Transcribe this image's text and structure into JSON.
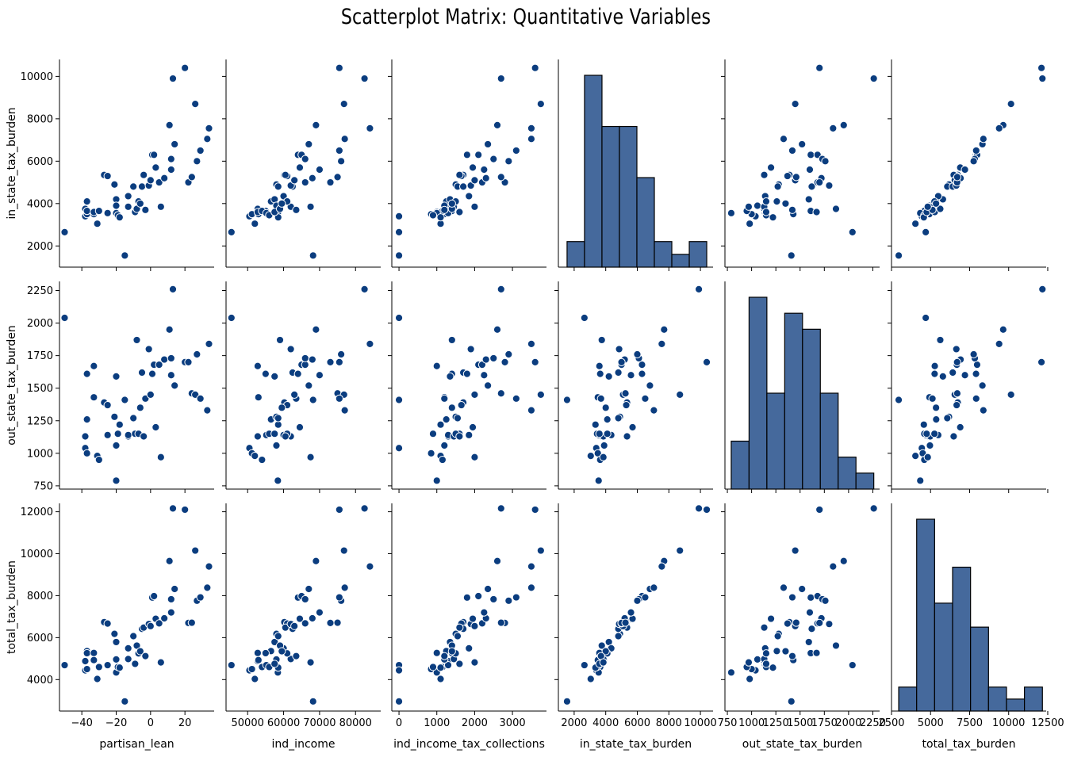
{
  "title": "Scatterplot Matrix: Quantitative Variables",
  "point_color": "#0b3d7f",
  "bar_color": "#45699c",
  "chart_data": {
    "type": "scatter",
    "title": "Scatterplot Matrix: Quantitative Variables",
    "x_vars": [
      "partisan_lean",
      "ind_income",
      "ind_income_tax_collections",
      "in_state_tax_burden",
      "out_state_tax_burden",
      "total_tax_burden"
    ],
    "y_vars": [
      "in_state_tax_burden",
      "out_state_tax_burden",
      "total_tax_burden"
    ],
    "diagonal": "histogram",
    "axes": {
      "partisan_lean": {
        "range": [
          -53,
          37
        ],
        "ticks": [
          -40,
          -20,
          0,
          20
        ],
        "tick_labels": [
          "−40",
          "−20",
          "0",
          "20"
        ]
      },
      "ind_income": {
        "range": [
          44000,
          87000
        ],
        "ticks": [
          50000,
          60000,
          70000,
          80000
        ],
        "tick_labels": [
          "50000",
          "60000",
          "70000",
          "80000"
        ]
      },
      "ind_income_tax_collections": {
        "range": [
          -190,
          3900
        ],
        "ticks": [
          0,
          1000,
          2000,
          3000
        ],
        "tick_labels": [
          "0",
          "1000",
          "2000",
          "3000"
        ]
      },
      "in_state_tax_burden": {
        "range": [
          1000,
          10800
        ],
        "ticks": [
          2000,
          4000,
          6000,
          8000,
          10000
        ],
        "tick_labels": [
          "2000",
          "4000",
          "6000",
          "8000",
          "10000"
        ]
      },
      "out_state_tax_burden": {
        "range": [
          725,
          2320
        ],
        "ticks": [
          750,
          1000,
          1250,
          1500,
          1750,
          2000,
          2250
        ],
        "tick_labels": [
          "750",
          "1000",
          "1250",
          "1500",
          "1750",
          "2000",
          "2250"
        ]
      },
      "total_tax_burden": {
        "range": [
          2500,
          12400
        ],
        "ticks": [
          2500,
          5000,
          7500,
          10000,
          12500
        ],
        "tick_labels": [
          "2500",
          "5000",
          "7500",
          "10000",
          "12500"
        ]
      }
    },
    "y_axis_ticks": {
      "in_state_tax_burden": {
        "ticks": [
          2000,
          4000,
          6000,
          8000,
          10000
        ],
        "tick_labels": [
          "2000",
          "4000",
          "6000",
          "8000",
          "10000"
        ]
      },
      "out_state_tax_burden": {
        "ticks": [
          750,
          1000,
          1250,
          1500,
          1750,
          2000,
          2250
        ],
        "tick_labels": [
          "750",
          "1000",
          "1250",
          "1500",
          "1750",
          "2000",
          "2250"
        ]
      },
      "total_tax_burden": {
        "ticks": [
          4000,
          6000,
          8000,
          10000,
          12000
        ],
        "tick_labels": [
          "4000",
          "6000",
          "8000",
          "10000",
          "12000"
        ]
      }
    },
    "records": [
      {
        "partisan_lean": -50,
        "ind_income": 45500,
        "ind_income_tax_collections": 0,
        "in_state_tax_burden": 2650,
        "out_state_tax_burden": 2040,
        "total_tax_burden": 4690
      },
      {
        "partisan_lean": -38,
        "ind_income": 50500,
        "ind_income_tax_collections": 0,
        "in_state_tax_burden": 3400,
        "out_state_tax_burden": 1040,
        "total_tax_burden": 4440
      },
      {
        "partisan_lean": -37,
        "ind_income": 51200,
        "ind_income_tax_collections": 850,
        "in_state_tax_burden": 3500,
        "out_state_tax_burden": 1000,
        "total_tax_burden": 4500
      },
      {
        "partisan_lean": -38,
        "ind_income": 52800,
        "ind_income_tax_collections": 1300,
        "in_state_tax_burden": 3750,
        "out_state_tax_burden": 1130,
        "total_tax_burden": 4880
      },
      {
        "partisan_lean": -37,
        "ind_income": 56500,
        "ind_income_tax_collections": 1250,
        "in_state_tax_burden": 4100,
        "out_state_tax_burden": 1260,
        "total_tax_burden": 5360
      },
      {
        "partisan_lean": -37,
        "ind_income": 55000,
        "ind_income_tax_collections": 1400,
        "in_state_tax_burden": 3650,
        "out_state_tax_burden": 1610,
        "total_tax_burden": 5260
      },
      {
        "partisan_lean": -33,
        "ind_income": 53000,
        "ind_income_tax_collections": 1200,
        "in_state_tax_burden": 3500,
        "out_state_tax_burden": 1430,
        "total_tax_burden": 4930
      },
      {
        "partisan_lean": -33,
        "ind_income": 52800,
        "ind_income_tax_collections": 1000,
        "in_state_tax_burden": 3600,
        "out_state_tax_burden": 1670,
        "total_tax_burden": 5270
      },
      {
        "partisan_lean": -31,
        "ind_income": 52000,
        "ind_income_tax_collections": 1100,
        "in_state_tax_burden": 3050,
        "out_state_tax_burden": 980,
        "total_tax_burden": 4030
      },
      {
        "partisan_lean": -30,
        "ind_income": 54000,
        "ind_income_tax_collections": 1150,
        "in_state_tax_burden": 3650,
        "out_state_tax_burden": 950,
        "total_tax_burden": 4600
      },
      {
        "partisan_lean": -27,
        "ind_income": 60200,
        "ind_income_tax_collections": 1700,
        "in_state_tax_burden": 5350,
        "out_state_tax_burden": 1390,
        "total_tax_burden": 6740
      },
      {
        "partisan_lean": -25,
        "ind_income": 61000,
        "ind_income_tax_collections": 1650,
        "in_state_tax_burden": 5300,
        "out_state_tax_burden": 1370,
        "total_tax_burden": 6670
      },
      {
        "partisan_lean": -25,
        "ind_income": 55200,
        "ind_income_tax_collections": 1300,
        "in_state_tax_burden": 3550,
        "out_state_tax_burden": 1140,
        "total_tax_burden": 4690
      },
      {
        "partisan_lean": -21,
        "ind_income": 58000,
        "ind_income_tax_collections": 1500,
        "in_state_tax_burden": 4900,
        "out_state_tax_burden": 1280,
        "total_tax_burden": 6180
      },
      {
        "partisan_lean": -20,
        "ind_income": 58400,
        "ind_income_tax_collections": 1000,
        "in_state_tax_burden": 3550,
        "out_state_tax_burden": 790,
        "total_tax_burden": 4340
      },
      {
        "partisan_lean": -20,
        "ind_income": 57500,
        "ind_income_tax_collections": 1350,
        "in_state_tax_burden": 4200,
        "out_state_tax_burden": 1590,
        "total_tax_burden": 5790
      },
      {
        "partisan_lean": -20,
        "ind_income": 58000,
        "ind_income_tax_collections": 1200,
        "in_state_tax_burden": 3900,
        "out_state_tax_burden": 1060,
        "total_tax_burden": 4960
      },
      {
        "partisan_lean": -19,
        "ind_income": 56000,
        "ind_income_tax_collections": 900,
        "in_state_tax_burden": 3450,
        "out_state_tax_burden": 1150,
        "total_tax_burden": 4600
      },
      {
        "partisan_lean": -18,
        "ind_income": 58500,
        "ind_income_tax_collections": 1100,
        "in_state_tax_burden": 3350,
        "out_state_tax_burden": 1220,
        "total_tax_burden": 4570
      },
      {
        "partisan_lean": -15,
        "ind_income": 68200,
        "ind_income_tax_collections": 0,
        "in_state_tax_burden": 1550,
        "out_state_tax_burden": 1410,
        "total_tax_burden": 2960
      },
      {
        "partisan_lean": -13,
        "ind_income": 62000,
        "ind_income_tax_collections": 1450,
        "in_state_tax_burden": 3850,
        "out_state_tax_burden": 1130,
        "total_tax_burden": 4980
      },
      {
        "partisan_lean": -13,
        "ind_income": 60000,
        "ind_income_tax_collections": 1850,
        "in_state_tax_burden": 4350,
        "out_state_tax_burden": 1140,
        "total_tax_burden": 5490
      },
      {
        "partisan_lean": -10,
        "ind_income": 58500,
        "ind_income_tax_collections": 1550,
        "in_state_tax_burden": 4800,
        "out_state_tax_burden": 1270,
        "total_tax_burden": 6070
      },
      {
        "partisan_lean": -9,
        "ind_income": 57500,
        "ind_income_tax_collections": 1600,
        "in_state_tax_burden": 3600,
        "out_state_tax_burden": 1150,
        "total_tax_burden": 4750
      },
      {
        "partisan_lean": -8,
        "ind_income": 59000,
        "ind_income_tax_collections": 1400,
        "in_state_tax_burden": 3750,
        "out_state_tax_burden": 1870,
        "total_tax_burden": 5620
      },
      {
        "partisan_lean": -7,
        "ind_income": 61000,
        "ind_income_tax_collections": 1500,
        "in_state_tax_burden": 4100,
        "out_state_tax_burden": 1150,
        "total_tax_burden": 5250
      },
      {
        "partisan_lean": -6,
        "ind_income": 59500,
        "ind_income_tax_collections": 1400,
        "in_state_tax_burden": 4000,
        "out_state_tax_burden": 1350,
        "total_tax_burden": 5350
      },
      {
        "partisan_lean": -5,
        "ind_income": 62500,
        "ind_income_tax_collections": 1700,
        "in_state_tax_burden": 4800,
        "out_state_tax_burden": 1620,
        "total_tax_burden": 6420
      },
      {
        "partisan_lean": -4,
        "ind_income": 60500,
        "ind_income_tax_collections": 1600,
        "in_state_tax_burden": 5350,
        "out_state_tax_burden": 1130,
        "total_tax_burden": 6480
      },
      {
        "partisan_lean": -3,
        "ind_income": 63500,
        "ind_income_tax_collections": 1200,
        "in_state_tax_burden": 3700,
        "out_state_tax_burden": 1420,
        "total_tax_burden": 5120
      },
      {
        "partisan_lean": -1,
        "ind_income": 62000,
        "ind_income_tax_collections": 1900,
        "in_state_tax_burden": 4850,
        "out_state_tax_burden": 1800,
        "total_tax_burden": 6650
      },
      {
        "partisan_lean": 0,
        "ind_income": 63000,
        "ind_income_tax_collections": 2000,
        "in_state_tax_burden": 5100,
        "out_state_tax_burden": 1450,
        "total_tax_burden": 6550
      },
      {
        "partisan_lean": 1,
        "ind_income": 64000,
        "ind_income_tax_collections": 1800,
        "in_state_tax_burden": 6300,
        "out_state_tax_burden": 1610,
        "total_tax_burden": 7910
      },
      {
        "partisan_lean": 2,
        "ind_income": 65000,
        "ind_income_tax_collections": 2100,
        "in_state_tax_burden": 6300,
        "out_state_tax_burden": 1680,
        "total_tax_burden": 7980
      },
      {
        "partisan_lean": 3,
        "ind_income": 64500,
        "ind_income_tax_collections": 1950,
        "in_state_tax_burden": 5700,
        "out_state_tax_burden": 1200,
        "total_tax_burden": 6900
      },
      {
        "partisan_lean": 5,
        "ind_income": 66000,
        "ind_income_tax_collections": 2200,
        "in_state_tax_burden": 5000,
        "out_state_tax_burden": 1680,
        "total_tax_burden": 6680
      },
      {
        "partisan_lean": 6,
        "ind_income": 67500,
        "ind_income_tax_collections": 2000,
        "in_state_tax_burden": 3850,
        "out_state_tax_burden": 970,
        "total_tax_burden": 4820
      },
      {
        "partisan_lean": 8,
        "ind_income": 68000,
        "ind_income_tax_collections": 2300,
        "in_state_tax_burden": 5200,
        "out_state_tax_burden": 1720,
        "total_tax_burden": 6920
      },
      {
        "partisan_lean": 11,
        "ind_income": 69000,
        "ind_income_tax_collections": 2600,
        "in_state_tax_burden": 7700,
        "out_state_tax_burden": 1950,
        "total_tax_burden": 9650
      },
      {
        "partisan_lean": 12,
        "ind_income": 66000,
        "ind_income_tax_collections": 2500,
        "in_state_tax_burden": 6100,
        "out_state_tax_burden": 1730,
        "total_tax_burden": 7830
      },
      {
        "partisan_lean": 13,
        "ind_income": 82500,
        "ind_income_tax_collections": 2700,
        "in_state_tax_burden": 9900,
        "out_state_tax_burden": 2260,
        "total_tax_burden": 12160
      },
      {
        "partisan_lean": 12,
        "ind_income": 70000,
        "ind_income_tax_collections": 2250,
        "in_state_tax_burden": 5600,
        "out_state_tax_burden": 1600,
        "total_tax_burden": 7200
      },
      {
        "partisan_lean": 14,
        "ind_income": 67000,
        "ind_income_tax_collections": 2350,
        "in_state_tax_burden": 6800,
        "out_state_tax_burden": 1520,
        "total_tax_burden": 8320
      },
      {
        "partisan_lean": 20,
        "ind_income": 75500,
        "ind_income_tax_collections": 3600,
        "in_state_tax_burden": 10400,
        "out_state_tax_burden": 1700,
        "total_tax_burden": 12100
      },
      {
        "partisan_lean": 22,
        "ind_income": 73000,
        "ind_income_tax_collections": 2800,
        "in_state_tax_burden": 5000,
        "out_state_tax_burden": 1700,
        "total_tax_burden": 6700
      },
      {
        "partisan_lean": 24,
        "ind_income": 75000,
        "ind_income_tax_collections": 2700,
        "in_state_tax_burden": 5250,
        "out_state_tax_burden": 1460,
        "total_tax_burden": 6710
      },
      {
        "partisan_lean": 26,
        "ind_income": 76800,
        "ind_income_tax_collections": 3750,
        "in_state_tax_burden": 8700,
        "out_state_tax_burden": 1450,
        "total_tax_burden": 10150
      },
      {
        "partisan_lean": 27,
        "ind_income": 76000,
        "ind_income_tax_collections": 2900,
        "in_state_tax_burden": 6000,
        "out_state_tax_burden": 1760,
        "total_tax_burden": 7760
      },
      {
        "partisan_lean": 29,
        "ind_income": 75500,
        "ind_income_tax_collections": 3100,
        "in_state_tax_burden": 6500,
        "out_state_tax_burden": 1420,
        "total_tax_burden": 7920
      },
      {
        "partisan_lean": 33,
        "ind_income": 77000,
        "ind_income_tax_collections": 3500,
        "in_state_tax_burden": 7050,
        "out_state_tax_burden": 1330,
        "total_tax_burden": 8380
      },
      {
        "partisan_lean": 34,
        "ind_income": 84000,
        "ind_income_tax_collections": 3500,
        "in_state_tax_burden": 7550,
        "out_state_tax_burden": 1840,
        "total_tax_burden": 9390
      }
    ]
  }
}
